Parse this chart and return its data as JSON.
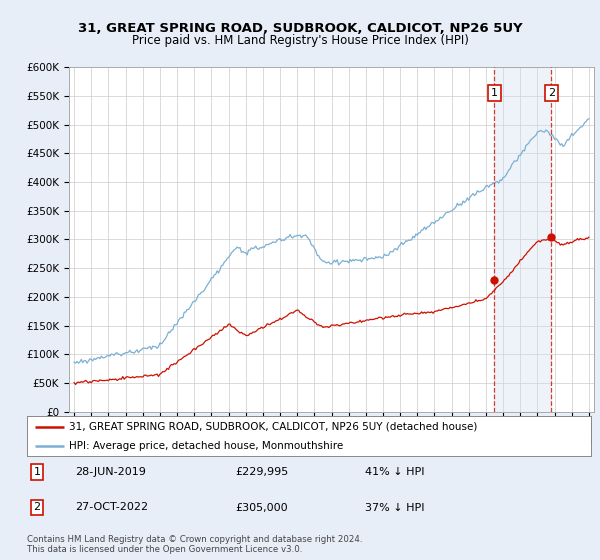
{
  "title": "31, GREAT SPRING ROAD, SUDBROOK, CALDICOT, NP26 5UY",
  "subtitle": "Price paid vs. HM Land Registry's House Price Index (HPI)",
  "ylim": [
    0,
    600000
  ],
  "yticks": [
    0,
    50000,
    100000,
    150000,
    200000,
    250000,
    300000,
    350000,
    400000,
    450000,
    500000,
    550000,
    600000
  ],
  "ytick_labels": [
    "£0",
    "£50K",
    "£100K",
    "£150K",
    "£200K",
    "£250K",
    "£300K",
    "£350K",
    "£400K",
    "£450K",
    "£500K",
    "£550K",
    "£600K"
  ],
  "hpi_color": "#7bafd4",
  "price_color": "#cc1100",
  "marker1_date": 2019.49,
  "marker2_date": 2022.82,
  "marker1_price": 229995,
  "marker2_price": 305000,
  "legend_label1": "31, GREAT SPRING ROAD, SUDBROOK, CALDICOT, NP26 5UY (detached house)",
  "legend_label2": "HPI: Average price, detached house, Monmouthshire",
  "background_color": "#e8eef8",
  "plot_bg_color": "#ffffff",
  "grid_color": "#cccccc",
  "shade_color": "#d0dff0"
}
